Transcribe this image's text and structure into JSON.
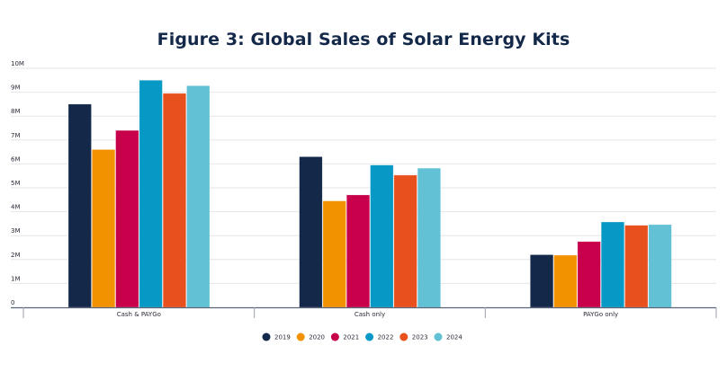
{
  "chart_data": {
    "type": "bar",
    "title": "Figure 3: Global Sales of Solar Energy Kits",
    "xlabel": "",
    "ylabel": "",
    "categories": [
      "Cash & PAYGo",
      "Cash only",
      "PAYGo only"
    ],
    "ylim": [
      0,
      10000000
    ],
    "yticks": [
      {
        "value": 0,
        "label": "0"
      },
      {
        "value": 1000000,
        "label": "1M"
      },
      {
        "value": 2000000,
        "label": "2M"
      },
      {
        "value": 3000000,
        "label": "3M"
      },
      {
        "value": 4000000,
        "label": "4M"
      },
      {
        "value": 5000000,
        "label": "5M"
      },
      {
        "value": 6000000,
        "label": "6M"
      },
      {
        "value": 7000000,
        "label": "7M"
      },
      {
        "value": 8000000,
        "label": "8M"
      },
      {
        "value": 9000000,
        "label": "9M"
      },
      {
        "value": 10000000,
        "label": "10M"
      }
    ],
    "grid": true,
    "legend_position": "bottom-center",
    "series": [
      {
        "name": "2019",
        "color": "#14294a",
        "values": [
          8500000,
          6300000,
          2200000
        ]
      },
      {
        "name": "2020",
        "color": "#f39200",
        "values": [
          6600000,
          4450000,
          2180000
        ]
      },
      {
        "name": "2021",
        "color": "#c8004b",
        "values": [
          7400000,
          4700000,
          2750000
        ]
      },
      {
        "name": "2022",
        "color": "#0799c5",
        "values": [
          9500000,
          5950000,
          3570000
        ]
      },
      {
        "name": "2023",
        "color": "#e8501e",
        "values": [
          8950000,
          5530000,
          3430000
        ]
      },
      {
        "name": "2024",
        "color": "#63c1d6",
        "values": [
          9270000,
          5820000,
          3460000
        ]
      }
    ]
  }
}
